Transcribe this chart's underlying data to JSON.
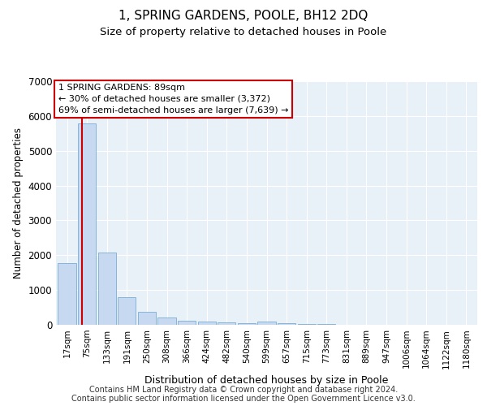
{
  "title": "1, SPRING GARDENS, POOLE, BH12 2DQ",
  "subtitle": "Size of property relative to detached houses in Poole",
  "xlabel": "Distribution of detached houses by size in Poole",
  "ylabel": "Number of detached properties",
  "bar_labels": [
    "17sqm",
    "75sqm",
    "133sqm",
    "191sqm",
    "250sqm",
    "308sqm",
    "366sqm",
    "424sqm",
    "482sqm",
    "540sqm",
    "599sqm",
    "657sqm",
    "715sqm",
    "773sqm",
    "831sqm",
    "889sqm",
    "947sqm",
    "1006sqm",
    "1064sqm",
    "1122sqm",
    "1180sqm"
  ],
  "bar_values": [
    1780,
    5780,
    2080,
    800,
    370,
    210,
    110,
    100,
    70,
    50,
    100,
    50,
    30,
    15,
    10,
    8,
    5,
    5,
    3,
    3,
    5
  ],
  "bar_color": "#c6d9f0",
  "bar_edgecolor": "#7aadd4",
  "ylim": [
    0,
    7000
  ],
  "yticks": [
    0,
    1000,
    2000,
    3000,
    4000,
    5000,
    6000,
    7000
  ],
  "vline_color": "#cc0000",
  "annotation_text": "1 SPRING GARDENS: 89sqm\n← 30% of detached houses are smaller (3,372)\n69% of semi-detached houses are larger (7,639) →",
  "annotation_box_color": "#ffffff",
  "annotation_box_edgecolor": "#cc0000",
  "footer_line1": "Contains HM Land Registry data © Crown copyright and database right 2024.",
  "footer_line2": "Contains public sector information licensed under the Open Government Licence v3.0.",
  "background_color": "#e8f0f8",
  "grid_color": "#ffffff"
}
